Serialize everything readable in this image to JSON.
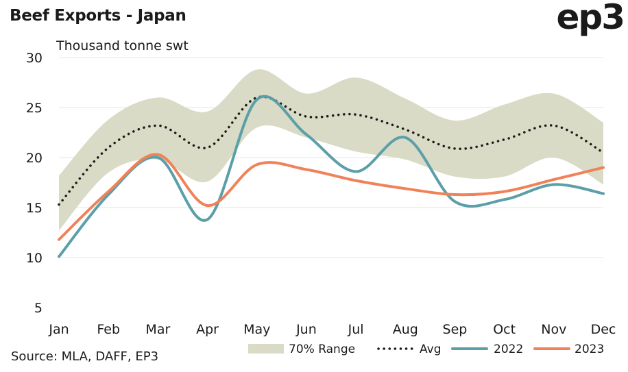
{
  "header": {
    "title": "Beef Exports - Japan",
    "logo": "ep3"
  },
  "footer": {
    "source": "Source: MLA, DAFF, EP3"
  },
  "chart_data": {
    "type": "line",
    "title": "Beef Exports - Japan",
    "ylabel": "Thousand tonne swt",
    "xlabel": "",
    "categories": [
      "Jan",
      "Feb",
      "Mar",
      "Apr",
      "May",
      "Jun",
      "Jul",
      "Aug",
      "Sep",
      "Oct",
      "Nov",
      "Dec"
    ],
    "ylim": [
      5,
      30
    ],
    "yticks": [
      5,
      10,
      15,
      20,
      25,
      30
    ],
    "grid": true,
    "legend_position": "bottom-right",
    "range": {
      "name": "70% Range",
      "lower": [
        12.7,
        18.5,
        19.8,
        17.6,
        23.0,
        22.0,
        20.6,
        19.8,
        18.1,
        18.1,
        20.0,
        17.3
      ],
      "upper": [
        18.2,
        23.8,
        26.0,
        24.6,
        28.8,
        26.4,
        28.0,
        25.9,
        23.7,
        25.3,
        26.4,
        23.5
      ],
      "color": "#d9dbc6"
    },
    "series": [
      {
        "name": "Avg",
        "values": [
          15.3,
          21.0,
          23.2,
          21.0,
          26.0,
          24.1,
          24.3,
          22.8,
          20.9,
          21.8,
          23.2,
          20.5
        ],
        "color": "#1a1a1a",
        "style": "dotted"
      },
      {
        "name": "2022",
        "values": [
          10.1,
          16.3,
          20.0,
          13.8,
          25.8,
          22.3,
          18.6,
          22.0,
          15.6,
          15.8,
          17.3,
          16.4
        ],
        "color": "#5b9fa8",
        "style": "solid"
      },
      {
        "name": "2023",
        "values": [
          11.8,
          16.6,
          20.3,
          15.2,
          19.3,
          18.8,
          17.7,
          16.9,
          16.3,
          16.6,
          17.8,
          19.0
        ],
        "color": "#f0825a",
        "style": "solid"
      }
    ]
  }
}
